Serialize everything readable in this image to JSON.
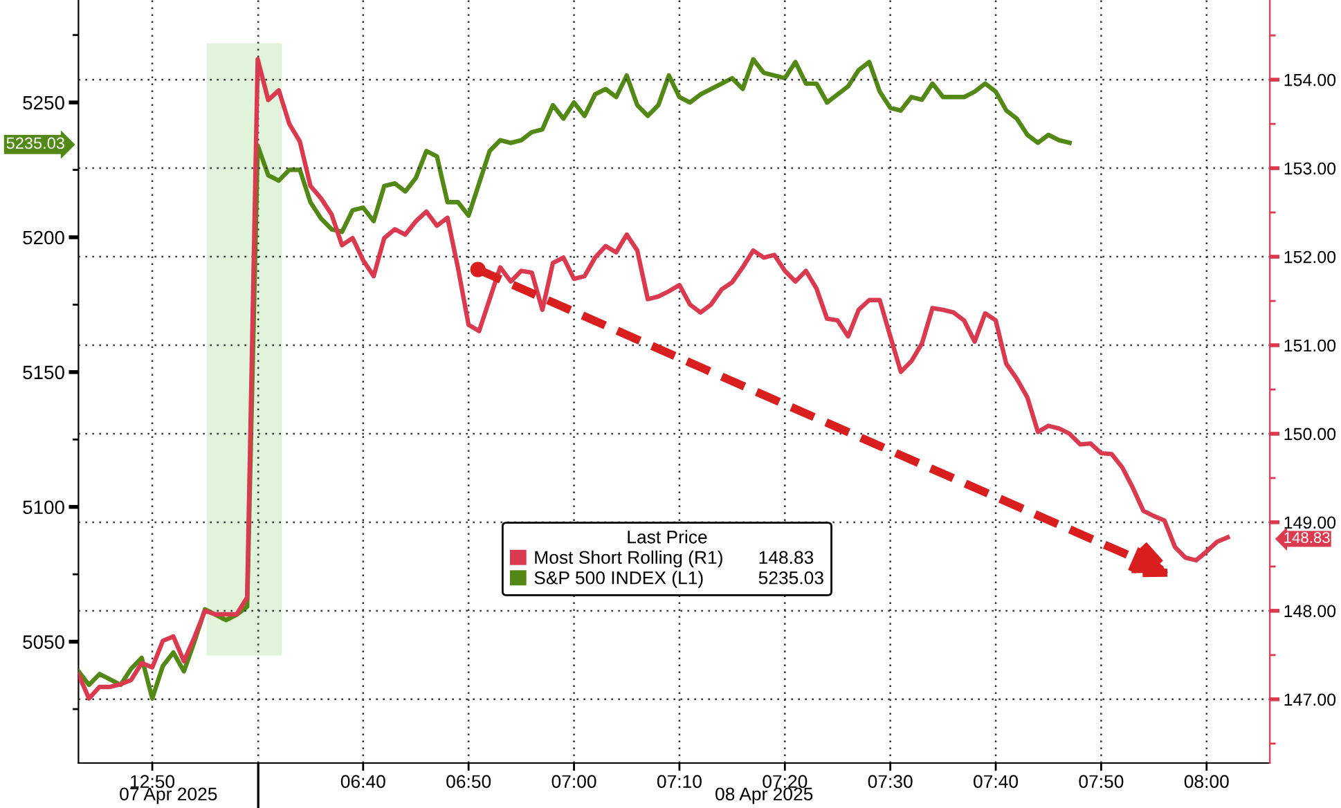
{
  "chart_data": {
    "type": "line",
    "categories": [
      null,
      null,
      null,
      null,
      null,
      null,
      null,
      "12:50",
      null,
      null,
      null,
      null,
      null,
      null,
      null,
      null,
      null,
      null,
      null,
      null,
      null,
      null,
      null,
      null,
      null,
      null,
      null,
      "06:40",
      null,
      null,
      null,
      null,
      null,
      null,
      null,
      null,
      null,
      "06:50",
      null,
      null,
      null,
      null,
      null,
      null,
      null,
      null,
      null,
      "07:00",
      null,
      null,
      null,
      null,
      null,
      null,
      null,
      null,
      null,
      "07:10",
      null,
      null,
      null,
      null,
      null,
      null,
      null,
      null,
      null,
      "07:20",
      null,
      null,
      null,
      null,
      null,
      null,
      null,
      null,
      null,
      "07:30",
      null,
      null,
      null,
      null,
      null,
      null,
      null,
      null,
      null,
      "07:40",
      null,
      null,
      null,
      null,
      null,
      null,
      null,
      null,
      null,
      "07:50",
      null,
      null,
      null,
      null,
      null,
      null,
      null,
      null,
      null,
      "08:00",
      null,
      null,
      null,
      null,
      null,
      null
    ],
    "series": [
      {
        "name": "Most Short Rolling (R1)",
        "axis": "y2",
        "color": "#d93a4f",
        "values": [
          147.28,
          147.01,
          147.14,
          147.14,
          147.17,
          147.22,
          147.41,
          147.36,
          147.66,
          147.71,
          147.43,
          147.7,
          148.0,
          147.96,
          147.96,
          147.96,
          148.15,
          154.23,
          153.77,
          153.88,
          153.5,
          153.3,
          152.8,
          152.66,
          152.48,
          152.13,
          152.21,
          151.96,
          151.78,
          152.21,
          152.31,
          152.25,
          152.4,
          152.51,
          152.35,
          152.44,
          151.87,
          151.23,
          151.16,
          151.52,
          151.88,
          151.72,
          151.84,
          151.82,
          151.4,
          151.93,
          151.99,
          151.75,
          151.78,
          151.99,
          152.12,
          152.05,
          152.25,
          152.07,
          151.52,
          151.55,
          151.61,
          151.68,
          151.46,
          151.37,
          151.46,
          151.63,
          151.71,
          151.88,
          152.07,
          151.99,
          152.02,
          151.84,
          151.72,
          151.84,
          151.64,
          151.3,
          151.28,
          151.1,
          151.4,
          151.51,
          151.51,
          151.1,
          150.7,
          150.82,
          151.02,
          151.42,
          151.4,
          151.37,
          151.28,
          151.04,
          151.36,
          151.28,
          150.79,
          150.62,
          150.41,
          150.02,
          150.09,
          150.06,
          150.0,
          149.88,
          149.89,
          149.78,
          149.77,
          149.62,
          149.39,
          149.13,
          149.07,
          149.02,
          148.72,
          148.6,
          148.57,
          148.67,
          148.78,
          148.83,
          null,
          null,
          null,
          null
        ]
      },
      {
        "name": "S&P 500 INDEX (L1)",
        "color": "#538817",
        "values": [
          5039,
          5034,
          5038,
          5036,
          5034,
          5040,
          5044,
          5029,
          5041,
          5046,
          5039,
          5050,
          5062,
          5060,
          5058,
          5060,
          5063,
          5234,
          5223,
          5221,
          5225,
          5225,
          5213,
          5207,
          5203,
          5202,
          5210,
          5211,
          5206,
          5219,
          5220,
          5217,
          5222,
          5232,
          5230,
          5213,
          5213,
          5208,
          5220,
          5232,
          5236,
          5235,
          5236,
          5239,
          5240,
          5249,
          5244,
          5250,
          5245,
          5253,
          5255,
          5252,
          5260,
          5249,
          5245,
          5249,
          5260,
          5252,
          5250,
          5253,
          5255,
          5257,
          5259,
          5255,
          5266,
          5261,
          5260,
          5259,
          5265,
          5257,
          5257,
          5250,
          5253,
          5256,
          5262,
          5265,
          5254,
          5248,
          5247,
          5252,
          5251,
          5257,
          5252,
          5252,
          5252,
          5254,
          5257,
          5254,
          5247,
          5244,
          5238,
          5235,
          5238,
          5236,
          5235.03,
          null,
          null,
          null,
          null,
          null,
          null,
          null,
          null,
          null,
          null,
          null,
          null,
          null,
          null,
          null,
          null,
          null,
          null,
          null
        ]
      }
    ],
    "ylim": [
      5005,
      5288
    ],
    "yticks": [
      {
        "value": 5025,
        "label": null
      },
      5050,
      {
        "value": 5075,
        "label": null
      },
      5100,
      {
        "value": 5125,
        "label": null
      },
      5150,
      {
        "value": 5175,
        "label": null
      },
      5200,
      {
        "value": 5225,
        "label": null
      },
      {
        "value": 5235.03,
        "label": "5235.03"
      },
      5250,
      {
        "value": 5275,
        "label": null
      }
    ],
    "y2lim": [
      146.28,
      154.9
    ],
    "y2ticks": [
      {
        "value": 146.5,
        "label": null
      },
      {
        "value": 147,
        "label": "147.00"
      },
      {
        "value": 147.5,
        "label": null
      },
      {
        "value": 148,
        "label": "148.00"
      },
      {
        "value": 148.5,
        "label": null
      },
      {
        "value": 148.83,
        "label": "148.83"
      },
      {
        "value": 149,
        "label": "149.00"
      },
      {
        "value": 149.5,
        "label": null
      },
      {
        "value": 150,
        "label": "150.00"
      },
      {
        "value": 150.5,
        "label": null
      },
      {
        "value": 151,
        "label": "151.00"
      },
      {
        "value": 151.5,
        "label": null
      },
      {
        "value": 152,
        "label": "152.00"
      },
      {
        "value": 152.5,
        "label": null
      },
      {
        "value": 153,
        "label": "153.00"
      },
      {
        "value": 153.5,
        "label": null
      },
      {
        "value": 154,
        "label": "154.00"
      },
      {
        "value": 154.5,
        "label": null
      }
    ],
    "annotations": [
      "07 Apr 2025",
      "08 Apr 2025"
    ],
    "legend_title": "Last Price",
    "legend": "bottom",
    "grid": true
  }
}
